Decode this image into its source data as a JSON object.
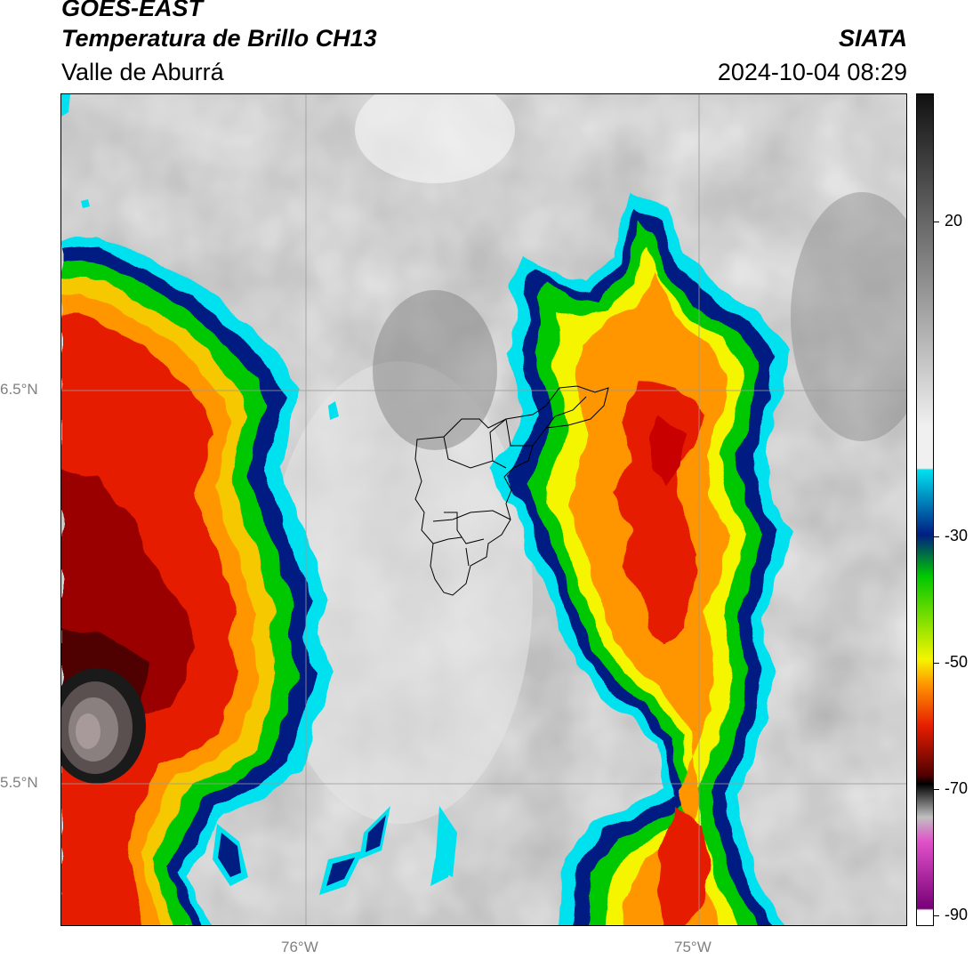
{
  "header": {
    "title_line1": "GOES-EAST",
    "title_line2": "Temperatura de Brillo CH13",
    "region": "Valle de Aburrá",
    "agency": "SIATA",
    "datetime": "2024-10-04 08:29"
  },
  "map": {
    "lat_labels": [
      "6.5°N",
      "5.5°N"
    ],
    "lon_labels": [
      "76°W",
      "75°W"
    ],
    "gridline_color": "#9a9a9a",
    "boundary_color": "#000000"
  },
  "colorbar": {
    "tick_labels": [
      "20",
      "-30",
      "-50",
      "-70",
      "-90"
    ],
    "range": [
      -90,
      40
    ],
    "colors": {
      "warm_max": "#111111",
      "gray_mid": "#8c8c8c",
      "light": "#f0f0f0",
      "cyan": "#00e1f0",
      "dark_blue": "#001e82",
      "green": "#00c800",
      "yellow": "#f5f500",
      "orange": "#ff9600",
      "red": "#e61e00",
      "dark_red": "#500000",
      "black": "#000000",
      "magenta": "#e050c8",
      "purple": "#780078",
      "white": "#ffffff"
    }
  }
}
